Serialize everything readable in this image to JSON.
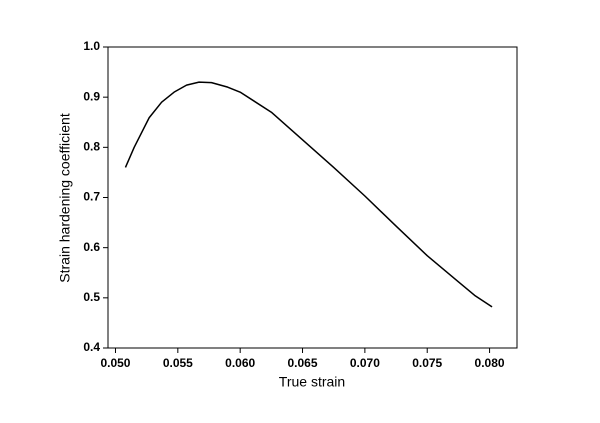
{
  "chart_data": {
    "type": "line",
    "xlabel": "True strain",
    "ylabel": "Strain hardening coefficient",
    "x": [
      0.0508,
      0.0515,
      0.0527,
      0.0537,
      0.0547,
      0.0557,
      0.0567,
      0.0577,
      0.059,
      0.06,
      0.0625,
      0.065,
      0.0675,
      0.07,
      0.0725,
      0.075,
      0.0775,
      0.0788,
      0.0802
    ],
    "series": [
      {
        "color": "#000000",
        "values": [
          0.76,
          0.8,
          0.859,
          0.89,
          0.91,
          0.924,
          0.93,
          0.929,
          0.92,
          0.91,
          0.87,
          0.815,
          0.76,
          0.703,
          0.643,
          0.584,
          0.532,
          0.505,
          0.482
        ]
      }
    ],
    "xlim": [
      0.0494,
      0.0822
    ],
    "xticks": [
      {
        "value": 0.05,
        "label": "0.050"
      },
      {
        "value": 0.055,
        "label": "0.055"
      },
      {
        "value": 0.06,
        "label": "0.060"
      },
      {
        "value": 0.065,
        "label": "0.065"
      },
      {
        "value": 0.07,
        "label": "0.070"
      },
      {
        "value": 0.075,
        "label": "0.075"
      },
      {
        "value": 0.08,
        "label": "0.080"
      }
    ],
    "ylim": [
      0.4,
      1.0
    ],
    "yticks": [
      0.4,
      0.5,
      0.6,
      0.7,
      0.8,
      0.9,
      {
        "value": 1.0,
        "label": "1.0"
      }
    ],
    "grid": false
  }
}
